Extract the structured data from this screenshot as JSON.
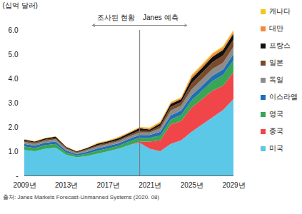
{
  "chart_data": {
    "type": "area",
    "stacked": true,
    "grid": false,
    "legend": "right",
    "y_label": "(십억 달러)",
    "caption": "출처: Janes Markets Forecast-Unmanned Systems (2020. 08)",
    "annotations": [
      "조사된 현황",
      "Janes 예측"
    ],
    "forecast_start": 2020,
    "x": [
      2009,
      2010,
      2011,
      2012,
      2013,
      2014,
      2015,
      2016,
      2017,
      2018,
      2019,
      2020,
      2021,
      2022,
      2023,
      2024,
      2025,
      2026,
      2027,
      2028,
      2029
    ],
    "xlim": [
      2009,
      2029
    ],
    "xticks": [
      {
        "value": 2009,
        "label": "2009년"
      },
      {
        "value": 2013,
        "label": "2013년"
      },
      {
        "value": 2017,
        "label": "2017년"
      },
      {
        "value": 2021,
        "label": "2021년"
      },
      {
        "value": 2025,
        "label": "2025년"
      },
      {
        "value": 2029,
        "label": "2029년"
      }
    ],
    "ylim": [
      0,
      6
    ],
    "yticks": [
      {
        "value": 0,
        "label": "-"
      },
      {
        "value": 1,
        "label": "1.0"
      },
      {
        "value": 2,
        "label": "2.0"
      },
      {
        "value": 3,
        "label": "3.0"
      },
      {
        "value": 4,
        "label": "4.0"
      },
      {
        "value": 5,
        "label": "5.0"
      },
      {
        "value": 6,
        "label": "6.0"
      }
    ],
    "series": [
      {
        "name": "미국",
        "color": "#5cc8e8",
        "values": [
          1.05,
          1.0,
          1.1,
          1.15,
          0.85,
          0.75,
          0.8,
          0.9,
          1.0,
          1.1,
          1.25,
          1.35,
          1.1,
          1.0,
          1.3,
          1.45,
          1.8,
          2.1,
          2.4,
          2.7,
          3.15
        ]
      },
      {
        "name": "중국",
        "color": "#f0464a",
        "values": [
          0,
          0,
          0,
          0,
          0,
          0,
          0,
          0,
          0,
          0,
          0,
          0.05,
          0.3,
          0.45,
          0.8,
          0.8,
          1.0,
          1.05,
          1.1,
          1.0,
          1.1
        ]
      },
      {
        "name": "영국",
        "color": "#3aa655",
        "values": [
          0.15,
          0.13,
          0.15,
          0.15,
          0.1,
          0.07,
          0.1,
          0.12,
          0.12,
          0.12,
          0.15,
          0.15,
          0.15,
          0.2,
          0.2,
          0.25,
          0.3,
          0.35,
          0.4,
          0.45,
          0.5
        ]
      },
      {
        "name": "이스라엘",
        "color": "#1f6fb5",
        "values": [
          0.1,
          0.1,
          0.1,
          0.1,
          0.08,
          0.06,
          0.08,
          0.1,
          0.1,
          0.1,
          0.1,
          0.12,
          0.12,
          0.15,
          0.18,
          0.18,
          0.2,
          0.2,
          0.22,
          0.22,
          0.25
        ]
      },
      {
        "name": "독일",
        "color": "#8c8c8c",
        "values": [
          0.08,
          0.08,
          0.08,
          0.09,
          0.07,
          0.05,
          0.07,
          0.08,
          0.08,
          0.09,
          0.1,
          0.1,
          0.1,
          0.15,
          0.2,
          0.2,
          0.25,
          0.27,
          0.28,
          0.28,
          0.3
        ]
      },
      {
        "name": "일본",
        "color": "#7a4a2a",
        "values": [
          0.05,
          0.05,
          0.05,
          0.05,
          0.04,
          0.03,
          0.04,
          0.05,
          0.05,
          0.05,
          0.06,
          0.08,
          0.06,
          0.1,
          0.15,
          0.15,
          0.25,
          0.27,
          0.28,
          0.3,
          0.3
        ]
      },
      {
        "name": "프랑스",
        "color": "#111111",
        "values": [
          0.05,
          0.04,
          0.05,
          0.06,
          0.04,
          0.03,
          0.04,
          0.06,
          0.06,
          0.08,
          0.08,
          0.1,
          0.07,
          0.1,
          0.12,
          0.12,
          0.2,
          0.2,
          0.22,
          0.23,
          0.25
        ]
      },
      {
        "name": "대만",
        "color": "#f08a3c",
        "values": [
          0.01,
          0.01,
          0.01,
          0.01,
          0.01,
          0.01,
          0.01,
          0.02,
          0.02,
          0.03,
          0.03,
          0.03,
          0.05,
          0.05,
          0.05,
          0.05,
          0.1,
          0.1,
          0.1,
          0.1,
          0.1
        ]
      },
      {
        "name": "캐나다",
        "color": "#f5c518",
        "values": [
          0.01,
          0.01,
          0.01,
          0.01,
          0.01,
          0.01,
          0.01,
          0.02,
          0.02,
          0.02,
          0.02,
          0.02,
          0.03,
          0.03,
          0.03,
          0.03,
          0.05,
          0.05,
          0.05,
          0.05,
          0.05
        ]
      }
    ]
  }
}
